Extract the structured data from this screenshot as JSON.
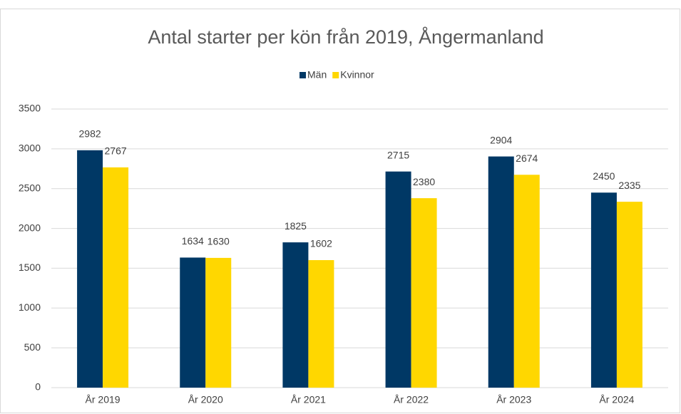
{
  "chart_data": {
    "type": "bar",
    "title": "Antal starter per kön från 2019, Ångermanland",
    "categories": [
      "År 2019",
      "År 2020",
      "År 2021",
      "År 2022",
      "År 2023",
      "År 2024"
    ],
    "series": [
      {
        "name": "Män",
        "color": "#003865",
        "values": [
          2982,
          1634,
          1825,
          2715,
          2904,
          2450
        ]
      },
      {
        "name": "Kvinnor",
        "color": "#ffd700",
        "values": [
          2767,
          1630,
          1602,
          2380,
          2674,
          2335
        ]
      }
    ],
    "ylim": [
      0,
      3500
    ],
    "yticks": [
      0,
      500,
      1000,
      1500,
      2000,
      2500,
      3000,
      3500
    ],
    "grid": true,
    "legend": "top"
  }
}
